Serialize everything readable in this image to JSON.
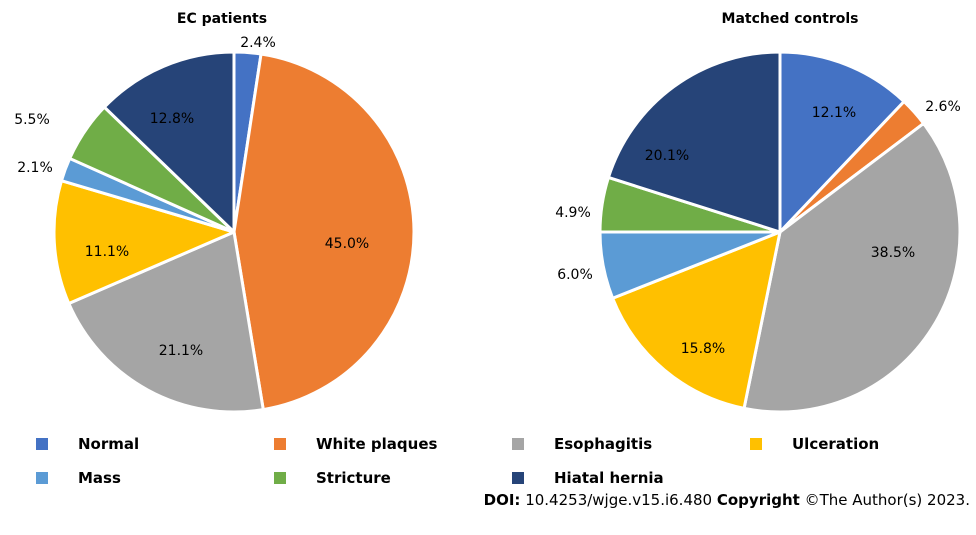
{
  "colors": {
    "Normal": "#4472C4",
    "White plaques": "#ED7D31",
    "Esophagitis": "#A5A5A5",
    "Ulceration": "#FFC000",
    "Mass": "#5B9BD5",
    "Stricture": "#70AD47",
    "Hiatal hernia": "#264478"
  },
  "chart_data": [
    {
      "type": "pie",
      "title": "EC patients",
      "categories": [
        "Normal",
        "White plaques",
        "Esophagitis",
        "Ulceration",
        "Mass",
        "Stricture",
        "Hiatal hernia"
      ],
      "values": [
        2.4,
        45.0,
        21.1,
        11.1,
        2.1,
        5.5,
        12.8
      ],
      "labels": [
        "2.4%",
        "45.0%",
        "21.1%",
        "11.1%",
        "2.1%",
        "5.5%",
        "12.8%"
      ]
    },
    {
      "type": "pie",
      "title": "Matched controls",
      "categories": [
        "Normal",
        "White plaques",
        "Esophagitis",
        "Ulceration",
        "Mass",
        "Stricture",
        "Hiatal hernia"
      ],
      "values": [
        12.1,
        2.6,
        38.5,
        15.8,
        6.0,
        4.9,
        20.1
      ],
      "labels": [
        "12.1%",
        "2.6%",
        "38.5%",
        "15.8%",
        "6.0%",
        "4.9%",
        "20.1%"
      ]
    }
  ],
  "legend": [
    {
      "name": "Normal",
      "color": "#4472C4"
    },
    {
      "name": "White plaques",
      "color": "#ED7D31"
    },
    {
      "name": "Esophagitis",
      "color": "#A5A5A5"
    },
    {
      "name": "Ulceration",
      "color": "#FFC000"
    },
    {
      "name": "Mass",
      "color": "#5B9BD5"
    },
    {
      "name": "Stricture",
      "color": "#70AD47"
    },
    {
      "name": "Hiatal hernia",
      "color": "#264478"
    }
  ],
  "footer": {
    "doi_label": "DOI:",
    "doi_value": " 10.4253/wjge.v15.i6.480 ",
    "copyright_label": "Copyright",
    "copyright_value": " ©The Author(s) 2023."
  }
}
